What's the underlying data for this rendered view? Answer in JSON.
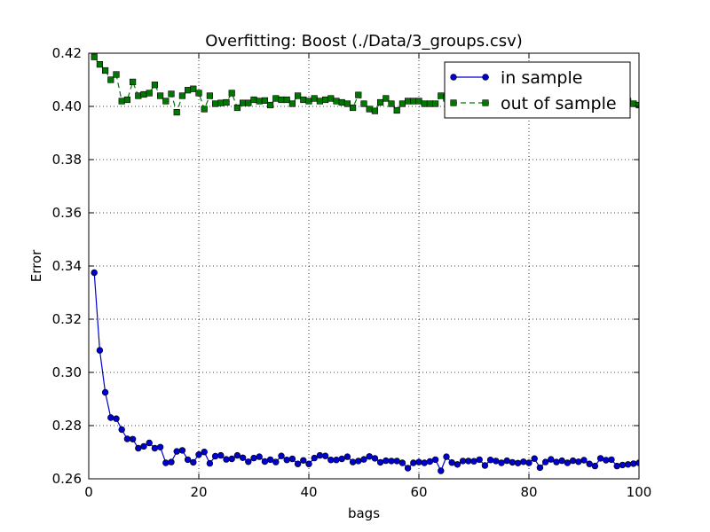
{
  "chart_data": {
    "type": "line",
    "title": "Overfitting: Boost (./Data/3_groups.csv)",
    "xlabel": "bags",
    "ylabel": "Error",
    "xlim": [
      0,
      100
    ],
    "ylim": [
      0.26,
      0.42
    ],
    "xticks": [
      0,
      20,
      40,
      60,
      80,
      100
    ],
    "yticks": [
      0.26,
      0.28,
      0.3,
      0.32,
      0.34,
      0.36,
      0.38,
      0.4,
      0.42
    ],
    "grid": true,
    "legend_position": "top-right",
    "x": [
      1,
      2,
      3,
      4,
      5,
      6,
      7,
      8,
      9,
      10,
      11,
      12,
      13,
      14,
      15,
      16,
      17,
      18,
      19,
      20,
      21,
      22,
      23,
      24,
      25,
      26,
      27,
      28,
      29,
      30,
      31,
      32,
      33,
      34,
      35,
      36,
      37,
      38,
      39,
      40,
      41,
      42,
      43,
      44,
      45,
      46,
      47,
      48,
      49,
      50,
      51,
      52,
      53,
      54,
      55,
      56,
      57,
      58,
      59,
      60,
      61,
      62,
      63,
      64,
      65,
      66,
      67,
      68,
      69,
      70,
      71,
      72,
      73,
      74,
      75,
      76,
      77,
      78,
      79,
      80,
      81,
      82,
      83,
      84,
      85,
      86,
      87,
      88,
      89,
      90,
      91,
      92,
      93,
      94,
      95,
      96,
      97,
      98,
      99,
      100
    ],
    "series": [
      {
        "name": "in sample",
        "color": "#0000cc",
        "marker": "circle",
        "linestyle": "solid",
        "values": [
          0.3375,
          0.3083,
          0.2925,
          0.283,
          0.2826,
          0.2785,
          0.275,
          0.2749,
          0.2715,
          0.2722,
          0.2735,
          0.2715,
          0.2719,
          0.266,
          0.2663,
          0.2703,
          0.2707,
          0.2672,
          0.2662,
          0.2691,
          0.2701,
          0.2658,
          0.2685,
          0.2688,
          0.2673,
          0.2675,
          0.2688,
          0.2679,
          0.2664,
          0.2678,
          0.2683,
          0.2665,
          0.2672,
          0.2663,
          0.2686,
          0.2671,
          0.2675,
          0.2656,
          0.2669,
          0.2656,
          0.2678,
          0.2688,
          0.2686,
          0.2671,
          0.2671,
          0.2675,
          0.2683,
          0.2663,
          0.2667,
          0.2673,
          0.2684,
          0.2677,
          0.2662,
          0.2668,
          0.2667,
          0.2667,
          0.266,
          0.264,
          0.266,
          0.2663,
          0.266,
          0.2665,
          0.2672,
          0.263,
          0.2683,
          0.2661,
          0.2654,
          0.2667,
          0.2667,
          0.2666,
          0.2672,
          0.265,
          0.2671,
          0.2667,
          0.266,
          0.2668,
          0.2662,
          0.2659,
          0.2664,
          0.266,
          0.2676,
          0.2642,
          0.2663,
          0.2673,
          0.2663,
          0.2668,
          0.266,
          0.2668,
          0.2664,
          0.267,
          0.2656,
          0.2648,
          0.2677,
          0.267,
          0.2672,
          0.2648,
          0.2652,
          0.2654,
          0.2657,
          0.266
        ]
      },
      {
        "name": "out of sample",
        "color": "#007700",
        "marker": "square",
        "linestyle": "dashed",
        "values": [
          0.4186,
          0.4158,
          0.4135,
          0.41,
          0.412,
          0.402,
          0.4025,
          0.4092,
          0.404,
          0.4045,
          0.405,
          0.4081,
          0.404,
          0.402,
          0.4047,
          0.3978,
          0.404,
          0.4061,
          0.4066,
          0.405,
          0.399,
          0.404,
          0.401,
          0.4013,
          0.4015,
          0.405,
          0.3995,
          0.4013,
          0.4013,
          0.4025,
          0.402,
          0.4022,
          0.4005,
          0.403,
          0.4025,
          0.4025,
          0.401,
          0.404,
          0.4025,
          0.402,
          0.403,
          0.402,
          0.4025,
          0.403,
          0.402,
          0.4015,
          0.401,
          0.3995,
          0.4043,
          0.401,
          0.399,
          0.3983,
          0.4015,
          0.403,
          0.401,
          0.3985,
          0.401,
          0.402,
          0.402,
          0.402,
          0.401,
          0.401,
          0.401,
          0.404,
          0.403,
          0.4025,
          0.403,
          0.402,
          0.401,
          0.403,
          0.4025,
          0.402,
          0.4025,
          0.402,
          0.402,
          0.403,
          0.403,
          0.403,
          0.402,
          0.404,
          0.403,
          0.4025,
          0.402,
          0.402,
          0.4015,
          0.402,
          0.402,
          0.4015,
          0.401,
          0.4025,
          0.402,
          0.4015,
          0.402,
          0.4025,
          0.403,
          0.4025,
          0.403,
          0.402,
          0.401,
          0.4005
        ]
      }
    ]
  }
}
